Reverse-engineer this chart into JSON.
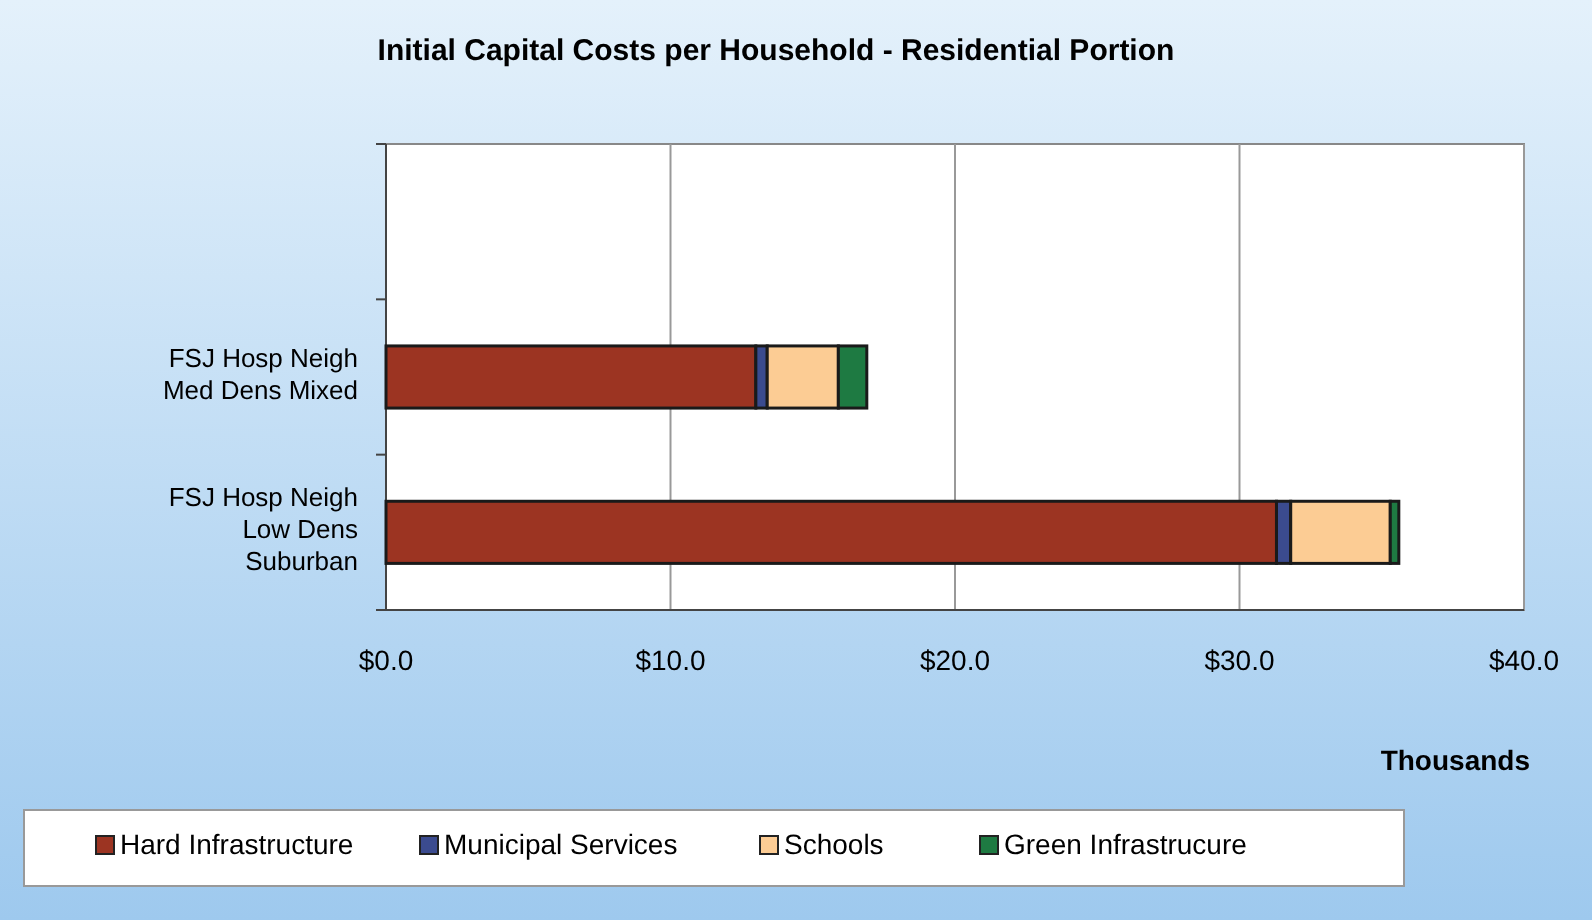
{
  "chart_data": {
    "type": "bar",
    "orientation": "horizontal",
    "stacked": true,
    "title": "Initial Capital Costs per Household - Residential Portion",
    "xlabel": "Thousands",
    "categories": [
      null,
      "FSJ Hosp Neigh Med Dens Mixed",
      "FSJ Hosp Neigh Low Dens Suburban"
    ],
    "series": [
      {
        "name": "Hard Infrastructure",
        "color": "#9c3422",
        "values": [
          null,
          13.0,
          31.3
        ]
      },
      {
        "name": "Municipal Services",
        "color": "#3b4b8f",
        "values": [
          null,
          0.4,
          0.5
        ]
      },
      {
        "name": "Schools",
        "color": "#fccc94",
        "values": [
          null,
          2.5,
          3.5
        ]
      },
      {
        "name": "Green Infrastrucure",
        "color": "#1e7a42",
        "values": [
          null,
          1.0,
          0.3
        ]
      }
    ],
    "xlim": [
      0,
      40
    ],
    "xticks": [
      {
        "value": 0,
        "label": "$0.0"
      },
      {
        "value": 10,
        "label": "$10.0"
      },
      {
        "value": 20,
        "label": "$20.0"
      },
      {
        "value": 30,
        "label": "$30.0"
      },
      {
        "value": 40,
        "label": "$40.0"
      }
    ],
    "grid": "x",
    "legend": "bottom"
  }
}
